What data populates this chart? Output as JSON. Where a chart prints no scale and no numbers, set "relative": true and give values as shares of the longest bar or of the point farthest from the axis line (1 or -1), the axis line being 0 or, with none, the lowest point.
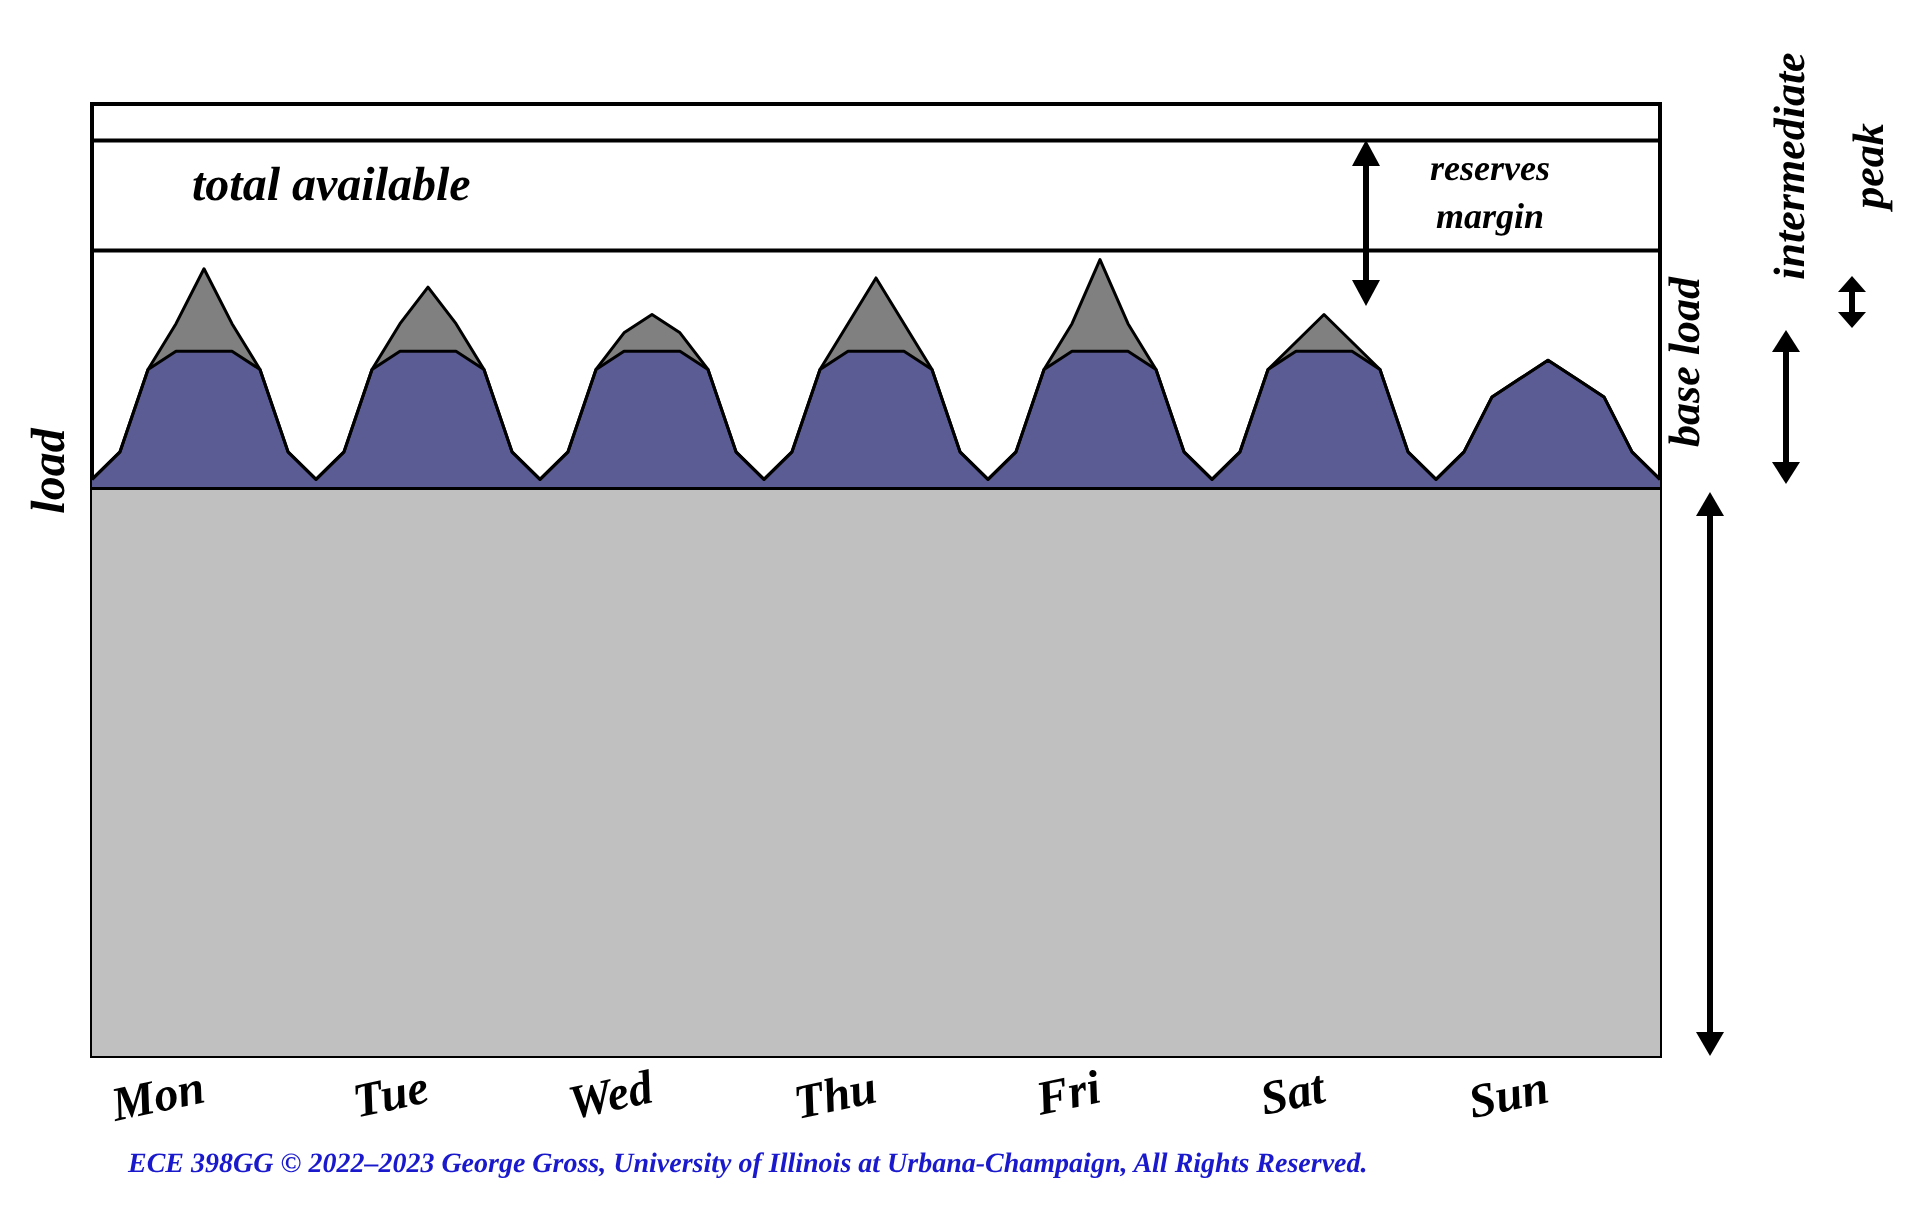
{
  "chart_data": {
    "type": "area",
    "relative": true,
    "ylabel": "load",
    "categories": [
      null,
      null,
      null,
      null,
      "Mon",
      null,
      null,
      null,
      null,
      null,
      null,
      null,
      "Tue",
      null,
      null,
      null,
      null,
      null,
      null,
      null,
      "Wed",
      null,
      null,
      null,
      null,
      null,
      null,
      null,
      "Thu",
      null,
      null,
      null,
      null,
      null,
      null,
      null,
      "Fri",
      null,
      null,
      null,
      null,
      null,
      null,
      null,
      "Sat",
      null,
      null,
      null,
      null,
      null,
      null,
      null,
      "Sun",
      null,
      null,
      null,
      null
    ],
    "series": [
      {
        "type": "area",
        "color": "#808080",
        "values": [
          0.63,
          0.66,
          0.75,
          0.8,
          0.86,
          0.8,
          0.75,
          0.66,
          0.63,
          0.66,
          0.75,
          0.8,
          0.84,
          0.8,
          0.75,
          0.66,
          0.63,
          0.66,
          0.75,
          0.79,
          0.81,
          0.79,
          0.75,
          0.66,
          0.63,
          0.66,
          0.75,
          0.8,
          0.85,
          0.8,
          0.75,
          0.66,
          0.63,
          0.66,
          0.75,
          0.8,
          0.87,
          0.8,
          0.75,
          0.66,
          0.63,
          0.66,
          0.75,
          0.78,
          0.81,
          0.78,
          0.75,
          0.66,
          0.63,
          0.66,
          0.72,
          0.74,
          0.76,
          0.74,
          0.72,
          0.66,
          0.63
        ]
      },
      {
        "type": "area",
        "color": "#5c5c94",
        "values": [
          0.63,
          0.66,
          0.75,
          0.77,
          0.77,
          0.77,
          0.75,
          0.66,
          0.63,
          0.66,
          0.75,
          0.77,
          0.77,
          0.77,
          0.75,
          0.66,
          0.63,
          0.66,
          0.75,
          0.77,
          0.77,
          0.77,
          0.75,
          0.66,
          0.63,
          0.66,
          0.75,
          0.77,
          0.77,
          0.77,
          0.75,
          0.66,
          0.63,
          0.66,
          0.75,
          0.77,
          0.77,
          0.77,
          0.75,
          0.66,
          0.63,
          0.66,
          0.75,
          0.77,
          0.77,
          0.77,
          0.75,
          0.66,
          0.63,
          0.66,
          0.72,
          0.74,
          0.76,
          0.74,
          0.72,
          0.66,
          0.63
        ]
      },
      {
        "type": "area",
        "color": "#c0c0c0",
        "values": [
          0.62,
          0.62,
          0.62,
          0.62,
          0.62,
          0.62,
          0.62,
          0.62,
          0.62,
          0.62,
          0.62,
          0.62,
          0.62,
          0.62,
          0.62,
          0.62,
          0.62,
          0.62,
          0.62,
          0.62,
          0.62,
          0.62,
          0.62,
          0.62,
          0.62,
          0.62,
          0.62,
          0.62,
          0.62,
          0.62,
          0.62,
          0.62,
          0.62,
          0.62,
          0.62,
          0.62,
          0.62,
          0.62,
          0.62,
          0.62,
          0.62,
          0.62,
          0.62,
          0.62,
          0.62,
          0.62,
          0.62,
          0.62,
          0.62,
          0.62,
          0.62,
          0.62,
          0.62,
          0.62,
          0.62,
          0.62,
          0.62
        ]
      },
      {
        "type": "line",
        "color": "#000000",
        "values": [
          0.88,
          0.88,
          0.88,
          0.88,
          0.88,
          0.88,
          0.88,
          0.88,
          0.88,
          0.88,
          0.88,
          0.88,
          0.88,
          0.88,
          0.88,
          0.88,
          0.88,
          0.88,
          0.88,
          0.88,
          0.88,
          0.88,
          0.88,
          0.88,
          0.88,
          0.88,
          0.88,
          0.88,
          0.88,
          0.88,
          0.88,
          0.88,
          0.88,
          0.88,
          0.88,
          0.88,
          0.88,
          0.88,
          0.88,
          0.88,
          0.88,
          0.88,
          0.88,
          0.88,
          0.88,
          0.88,
          0.88,
          0.88,
          0.88,
          0.88,
          0.88,
          0.88,
          0.88,
          0.88,
          0.88,
          0.88,
          0.88
        ]
      },
      {
        "type": "line",
        "color": "#000000",
        "values": [
          1,
          1,
          1,
          1,
          1,
          1,
          1,
          1,
          1,
          1,
          1,
          1,
          1,
          1,
          1,
          1,
          1,
          1,
          1,
          1,
          1,
          1,
          1,
          1,
          1,
          1,
          1,
          1,
          1,
          1,
          1,
          1,
          1,
          1,
          1,
          1,
          1,
          1,
          1,
          1,
          1,
          1,
          1,
          1,
          1,
          1,
          1,
          1,
          1,
          1,
          1,
          1,
          1,
          1,
          1,
          1,
          1
        ]
      }
    ],
    "annotations": [
      "total available",
      "reserves margin",
      "base load",
      "intermediate",
      "peak",
      "ECE 398GG   © 2022–2023  George Gross,  University of Illinois at Urbana-Champaign, All Rights Reserved."
    ]
  }
}
